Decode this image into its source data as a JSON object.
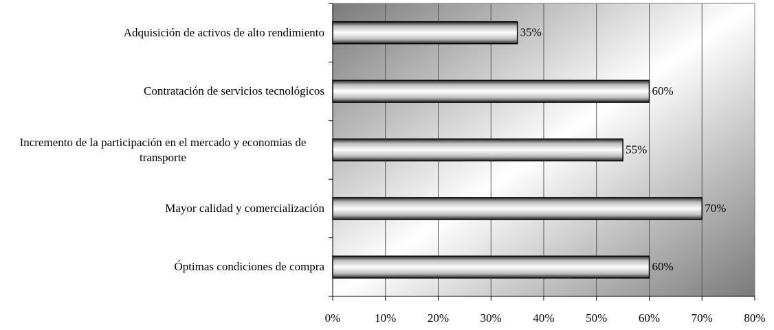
{
  "chart_data": {
    "type": "bar",
    "orientation": "horizontal",
    "categories": [
      "Adquisición de activos de alto rendimiento",
      "Contratación de servicios tecnológicos",
      "Incremento de la participación en el mercado y economias de transporte",
      "Mayor calidad y comercialización",
      "Óptimas condiciones de compra"
    ],
    "values": [
      35,
      60,
      55,
      70,
      60
    ],
    "value_labels": [
      "35%",
      "60%",
      "55%",
      "70%",
      "60%"
    ],
    "xlim": [
      0,
      80
    ],
    "xticks": [
      {
        "value": 0,
        "label": "0%"
      },
      {
        "value": 10,
        "label": "10%"
      },
      {
        "value": 20,
        "label": "20%"
      },
      {
        "value": 30,
        "label": "30%"
      },
      {
        "value": 40,
        "label": "40%"
      },
      {
        "value": 50,
        "label": "50%"
      },
      {
        "value": 60,
        "label": "60%"
      },
      {
        "value": 70,
        "label": "70%"
      },
      {
        "value": 80,
        "label": "80%"
      }
    ],
    "grid": true
  }
}
